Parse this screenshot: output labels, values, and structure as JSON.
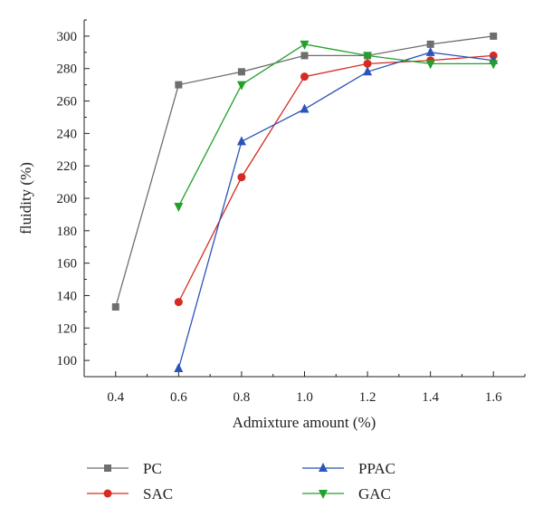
{
  "chart_data": {
    "type": "line",
    "xlabel": "Admixture amount (%)",
    "ylabel": "fluidity (%)",
    "xlim": [
      0.3,
      1.7
    ],
    "ylim": [
      90,
      310
    ],
    "xticks": [
      "0.4",
      "0.6",
      "0.8",
      "1.0",
      "1.2",
      "1.4",
      "1.6"
    ],
    "yticks": [
      "100",
      "120",
      "140",
      "160",
      "180",
      "200",
      "220",
      "240",
      "260",
      "280",
      "300"
    ],
    "legend_position": "bottom",
    "series": [
      {
        "name": "PC",
        "color": "#6e6e6e",
        "marker": "square",
        "x": [
          0.4,
          0.6,
          0.8,
          1.0,
          1.2,
          1.4,
          1.6
        ],
        "y": [
          133,
          270,
          278,
          288,
          288,
          295,
          300
        ]
      },
      {
        "name": "SAC",
        "color": "#d62b22",
        "marker": "circle",
        "x": [
          0.6,
          0.8,
          1.0,
          1.2,
          1.4,
          1.6
        ],
        "y": [
          136,
          213,
          275,
          283,
          285,
          288
        ]
      },
      {
        "name": "PPAC",
        "color": "#2a55b8",
        "marker": "triangle-up",
        "x": [
          0.6,
          0.8,
          1.0,
          1.2,
          1.4,
          1.6
        ],
        "y": [
          95,
          235,
          255,
          278,
          290,
          285
        ]
      },
      {
        "name": "GAC",
        "color": "#22a02a",
        "marker": "triangle-down",
        "x": [
          0.6,
          0.8,
          1.0,
          1.2,
          1.4,
          1.6
        ],
        "y": [
          195,
          270,
          295,
          288,
          283,
          283
        ]
      }
    ]
  }
}
